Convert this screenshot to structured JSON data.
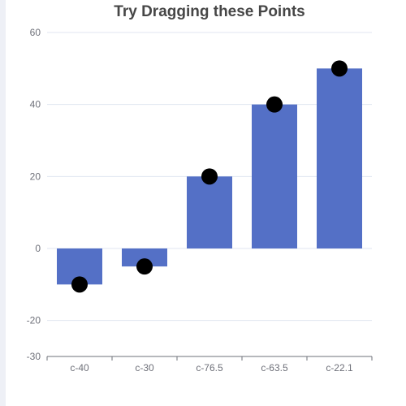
{
  "chart_data": {
    "type": "bar",
    "title": "Try Dragging these Points",
    "categories": [
      "c-40",
      "c-30",
      "c-76.5",
      "c-63.5",
      "c-22.1"
    ],
    "values": [
      -10,
      -5,
      20,
      40,
      50
    ],
    "points": [
      -10,
      -5,
      20,
      40,
      50
    ],
    "ylim": [
      -30,
      60
    ],
    "yticks": [
      -30,
      -20,
      0,
      20,
      40,
      60
    ],
    "grid": true,
    "legend": "none",
    "colors": {
      "bar": "#5470c6",
      "point": "#000000"
    }
  }
}
